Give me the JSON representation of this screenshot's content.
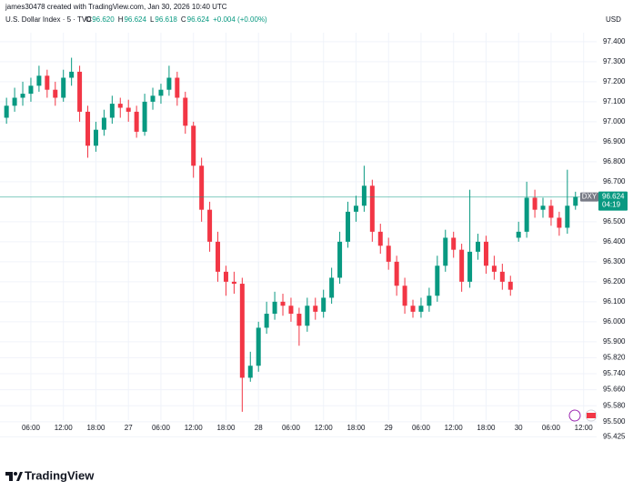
{
  "header": {
    "created_by": "james30478 created with TradingView.com, Jan 30, 2026 10:40 UTC",
    "symbol": "U.S. Dollar Index · 5 · TVC",
    "ohlc_legend": [
      {
        "key": "O",
        "text": "96.620"
      },
      {
        "key": "H",
        "text": "96.624"
      },
      {
        "key": "L",
        "text": "96.618"
      },
      {
        "key": "C",
        "text": "96.624"
      }
    ],
    "change": "+0.004 (+0.00%)",
    "currency": "USD"
  },
  "footer": {
    "brand": "TradingView"
  },
  "chart_data": {
    "type": "candlestick",
    "up_color": "#089981",
    "down_color": "#f23645",
    "grid": true,
    "symbol_label": "DXY",
    "countdown": "04:19",
    "x": [
      -22.5,
      -21,
      -19.5,
      -18,
      -16.5,
      -15,
      -13.5,
      -12,
      -10.5,
      -9,
      -7.5,
      -6,
      -4.5,
      -3,
      -1.5,
      0,
      1.5,
      3,
      4.5,
      6,
      7.5,
      9,
      10.5,
      12,
      13.5,
      15,
      16.5,
      18,
      19.5,
      21,
      22.5,
      24,
      25.5,
      27,
      28.5,
      30,
      31.5,
      33,
      34.5,
      36,
      37.5,
      39,
      40.5,
      42,
      43.5,
      45,
      46.5,
      48,
      49.5,
      51,
      52.5,
      54,
      55.5,
      57,
      58.5,
      60,
      61.5,
      63,
      64.5,
      66,
      67.5,
      69,
      70.5,
      72,
      73.5,
      75,
      76.5,
      78,
      79.5,
      81,
      82.5
    ],
    "open": [
      97.02,
      97.08,
      97.12,
      97.14,
      97.18,
      97.23,
      97.16,
      97.12,
      97.22,
      97.25,
      97.05,
      96.88,
      96.96,
      97.02,
      97.09,
      97.07,
      97.05,
      96.95,
      97.1,
      97.13,
      97.16,
      97.22,
      97.12,
      96.98,
      96.78,
      96.56,
      96.4,
      96.25,
      96.2,
      96.19,
      95.72,
      95.78,
      95.97,
      96.04,
      96.1,
      96.08,
      96.04,
      95.98,
      96.08,
      96.05,
      96.12,
      96.22,
      96.4,
      96.55,
      96.58,
      96.68,
      96.45,
      96.38,
      96.3,
      96.18,
      96.08,
      96.05,
      96.08,
      96.13,
      96.28,
      96.42,
      96.36,
      96.2,
      96.35,
      96.4,
      96.28,
      96.25,
      96.2,
      96.42,
      96.45,
      96.62,
      96.56,
      96.58,
      96.52,
      96.47,
      96.58
    ],
    "high": [
      97.12,
      97.17,
      97.2,
      97.22,
      97.28,
      97.26,
      97.2,
      97.26,
      97.32,
      97.28,
      97.08,
      97.0,
      97.06,
      97.13,
      97.12,
      97.11,
      97.08,
      97.14,
      97.17,
      97.19,
      97.28,
      97.25,
      97.15,
      97.0,
      96.82,
      96.6,
      96.45,
      96.28,
      96.25,
      96.22,
      95.85,
      96.0,
      96.1,
      96.15,
      96.14,
      96.12,
      96.07,
      96.12,
      96.12,
      96.16,
      96.27,
      96.45,
      96.6,
      96.63,
      96.78,
      96.71,
      96.49,
      96.42,
      96.33,
      96.22,
      96.11,
      96.12,
      96.17,
      96.33,
      96.46,
      96.45,
      96.39,
      96.66,
      96.44,
      96.43,
      96.33,
      96.29,
      96.23,
      96.5,
      96.7,
      96.66,
      96.62,
      96.61,
      96.55,
      96.76,
      96.65
    ],
    "low": [
      96.99,
      97.05,
      97.08,
      97.1,
      97.15,
      97.12,
      97.08,
      97.1,
      97.18,
      97.0,
      96.82,
      96.85,
      96.93,
      96.99,
      97.02,
      97.0,
      96.92,
      96.93,
      97.06,
      97.09,
      97.13,
      97.08,
      96.94,
      96.72,
      96.5,
      96.35,
      96.2,
      96.13,
      96.14,
      95.55,
      95.7,
      95.75,
      95.94,
      96.01,
      96.03,
      96.0,
      95.88,
      95.95,
      96.01,
      96.02,
      96.09,
      96.19,
      96.37,
      96.5,
      96.55,
      96.4,
      96.34,
      96.26,
      96.13,
      96.04,
      96.02,
      96.02,
      96.05,
      96.1,
      96.25,
      96.32,
      96.15,
      96.17,
      96.31,
      96.24,
      96.21,
      96.16,
      96.13,
      96.4,
      96.42,
      96.52,
      96.52,
      96.48,
      96.43,
      96.44,
      96.56
    ],
    "close": [
      97.08,
      97.12,
      97.14,
      97.18,
      97.23,
      97.16,
      97.12,
      97.22,
      97.25,
      97.05,
      96.88,
      96.96,
      97.02,
      97.09,
      97.07,
      97.05,
      96.95,
      97.1,
      97.13,
      97.16,
      97.22,
      97.12,
      96.98,
      96.78,
      96.56,
      96.4,
      96.25,
      96.2,
      96.19,
      95.72,
      95.78,
      95.97,
      96.04,
      96.1,
      96.08,
      96.04,
      95.98,
      96.08,
      96.05,
      96.12,
      96.22,
      96.4,
      96.55,
      96.58,
      96.68,
      96.45,
      96.38,
      96.3,
      96.18,
      96.08,
      96.05,
      96.08,
      96.13,
      96.28,
      96.42,
      96.36,
      96.2,
      96.35,
      96.4,
      96.28,
      96.25,
      96.2,
      96.16,
      96.45,
      96.62,
      96.56,
      96.58,
      96.52,
      96.47,
      96.58,
      96.624
    ],
    "xlim": [
      -23.7,
      86.4
    ],
    "xticks": [
      {
        "value": -18,
        "label": "06:00"
      },
      {
        "value": -12,
        "label": "12:00"
      },
      {
        "value": -6,
        "label": "18:00"
      },
      {
        "value": 0,
        "label": "27"
      },
      {
        "value": 6,
        "label": "06:00"
      },
      {
        "value": 12,
        "label": "12:00"
      },
      {
        "value": 18,
        "label": "18:00"
      },
      {
        "value": 24,
        "label": "28"
      },
      {
        "value": 30,
        "label": "06:00"
      },
      {
        "value": 36,
        "label": "12:00"
      },
      {
        "value": 42,
        "label": "18:00"
      },
      {
        "value": 48,
        "label": "29"
      },
      {
        "value": 54,
        "label": "06:00"
      },
      {
        "value": 60,
        "label": "12:00"
      },
      {
        "value": 66,
        "label": "18:00"
      },
      {
        "value": 72,
        "label": "30"
      },
      {
        "value": 78,
        "label": "06:00"
      },
      {
        "value": 84,
        "label": "12:00"
      }
    ],
    "ylim": [
      95.381,
      97.445
    ],
    "yticks": [
      {
        "value": 97.4,
        "label": "97.400"
      },
      {
        "value": 97.3,
        "label": "97.300"
      },
      {
        "value": 97.2,
        "label": "97.200"
      },
      {
        "value": 97.1,
        "label": "97.100"
      },
      {
        "value": 97.0,
        "label": "97.000"
      },
      {
        "value": 96.9,
        "label": "96.900"
      },
      {
        "value": 96.8,
        "label": "96.800"
      },
      {
        "value": 96.7,
        "label": "96.700"
      },
      {
        "value": 96.5,
        "label": "96.500"
      },
      {
        "value": 96.4,
        "label": "96.400"
      },
      {
        "value": 96.3,
        "label": "96.300"
      },
      {
        "value": 96.2,
        "label": "96.200"
      },
      {
        "value": 96.1,
        "label": "96.100"
      },
      {
        "value": 96.0,
        "label": "96.000"
      },
      {
        "value": 95.9,
        "label": "95.900"
      },
      {
        "value": 95.82,
        "label": "95.820"
      },
      {
        "value": 95.74,
        "label": "95.740"
      },
      {
        "value": 95.66,
        "label": "95.660"
      },
      {
        "value": 95.58,
        "label": "95.580"
      },
      {
        "value": 95.5,
        "label": "95.500"
      },
      {
        "value": 95.425,
        "label": "95.425"
      }
    ]
  }
}
